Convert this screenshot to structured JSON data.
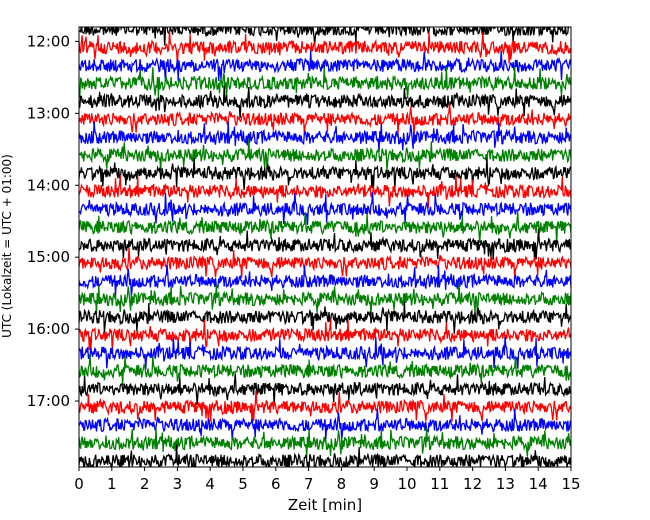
{
  "chart_data": {
    "type": "line",
    "title": "",
    "xlabel": "Zeit  [min]",
    "ylabel": "UTC (Lokalzeit = UTC + 01:00)",
    "xlim": [
      0,
      15
    ],
    "x_ticks": [
      "0",
      "1",
      "2",
      "3",
      "4",
      "5",
      "6",
      "7",
      "8",
      "9",
      "10",
      "11",
      "12",
      "13",
      "14",
      "15"
    ],
    "y_ticks": [
      "12:00",
      "13:00",
      "14:00",
      "15:00",
      "16:00",
      "17:00"
    ],
    "ylim_time": [
      "11:48",
      "17:55"
    ],
    "trace_interval_minutes": 15,
    "trace_start": "11:50",
    "trace_end": "17:50",
    "color_cycle": [
      "#000000",
      "#ff0000",
      "#0000ff",
      "#008000"
    ],
    "grid": false,
    "legend": "none"
  }
}
